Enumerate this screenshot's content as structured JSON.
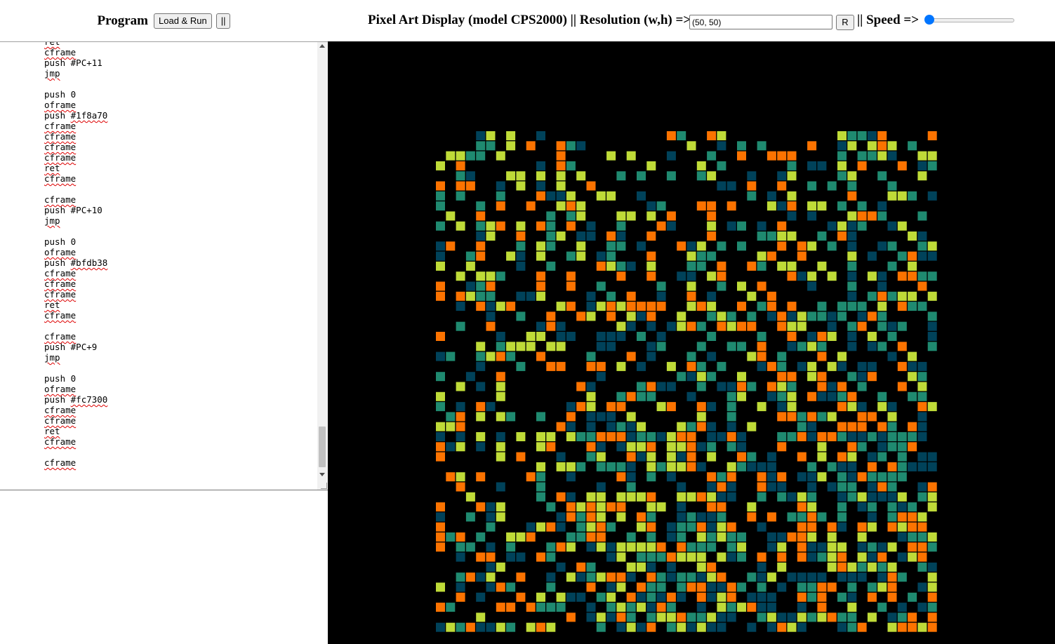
{
  "program": {
    "title": "Program",
    "load_run_label": "Load & Run",
    "pause_label": "||",
    "code_lines": [
      "ret",
      "cframe",
      "push #PC+11",
      "jmp",
      "",
      "push 0",
      "oframe",
      "push #1f8a70",
      "cframe",
      "cframe",
      "cframe",
      "cframe",
      "ret",
      "cframe",
      "",
      "cframe",
      "push #PC+10",
      "jmp",
      "",
      "push 0",
      "oframe",
      "push #bfdb38",
      "cframe",
      "cframe",
      "cframe",
      "ret",
      "cframe",
      "",
      "cframe",
      "push #PC+9",
      "jmp",
      "",
      "push 0",
      "oframe",
      "push #fc7300",
      "cframe",
      "cframe",
      "ret",
      "cframe",
      "",
      "cframe"
    ]
  },
  "display": {
    "title": "Pixel Art Display (model CPS2000) || Resolution (w,h) =>",
    "resolution_value": "(50, 50)",
    "reset_label": "R",
    "speed_label": "|| Speed =>",
    "speed_value": 0,
    "background": "#000000",
    "palette": [
      "#00425a",
      "#1f8a70",
      "#bfdb38",
      "#fc7300"
    ]
  }
}
